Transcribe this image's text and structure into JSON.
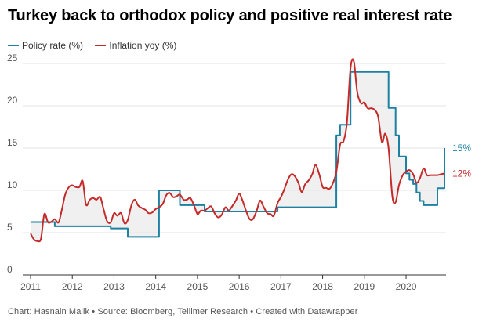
{
  "chart_data": {
    "type": "line",
    "title": "Turkey back to orthodox policy and positive real interest rate",
    "xlabel": "",
    "ylabel": "",
    "xlim": [
      2011,
      2020.92
    ],
    "ylim": [
      0,
      25
    ],
    "x_ticks": [
      "2011",
      "2012",
      "2013",
      "2014",
      "2015",
      "2016",
      "2017",
      "2018",
      "2019",
      "2020"
    ],
    "y_ticks": [
      "0",
      "5",
      "10",
      "15",
      "20",
      "25"
    ],
    "grid": true,
    "legend_position": "top-left",
    "shaded_between_series": true,
    "series": [
      {
        "name": "Policy rate (%)",
        "color": "#1d81a2",
        "end_label": "15%",
        "interpolation": "step",
        "x": [
          2011.0,
          2011.33,
          2011.58,
          2012.67,
          2012.92,
          2013.33,
          2013.92,
          2014.08,
          2014.33,
          2014.58,
          2015.0,
          2015.17,
          2016.17,
          2016.25,
          2016.75,
          2016.92,
          2018.25,
          2018.33,
          2018.42,
          2018.67,
          2019.5,
          2019.58,
          2019.67,
          2019.75,
          2019.83,
          2019.92,
          2020.0,
          2020.08,
          2020.17,
          2020.25,
          2020.33,
          2020.42,
          2020.67,
          2020.75,
          2020.83,
          2020.92
        ],
        "y": [
          6.25,
          6.25,
          5.75,
          5.75,
          5.5,
          4.5,
          4.5,
          10.0,
          10.0,
          8.25,
          8.25,
          7.5,
          7.5,
          7.5,
          7.5,
          8.0,
          8.0,
          16.5,
          17.75,
          24.0,
          24.0,
          19.75,
          19.75,
          16.5,
          14.0,
          14.0,
          12.0,
          11.25,
          10.75,
          9.75,
          8.75,
          8.25,
          8.25,
          10.25,
          10.25,
          15.0
        ]
      },
      {
        "name": "Inflation yoy (%)",
        "color": "#c42a2a",
        "end_label": "12%",
        "interpolation": "smooth",
        "x": [
          2011.0,
          2011.08,
          2011.17,
          2011.25,
          2011.33,
          2011.42,
          2011.5,
          2011.58,
          2011.67,
          2011.75,
          2011.83,
          2011.92,
          2012.0,
          2012.08,
          2012.17,
          2012.25,
          2012.33,
          2012.42,
          2012.5,
          2012.58,
          2012.67,
          2012.75,
          2012.83,
          2012.92,
          2013.0,
          2013.08,
          2013.17,
          2013.25,
          2013.33,
          2013.42,
          2013.5,
          2013.58,
          2013.67,
          2013.75,
          2013.83,
          2013.92,
          2014.0,
          2014.08,
          2014.17,
          2014.25,
          2014.33,
          2014.42,
          2014.5,
          2014.58,
          2014.67,
          2014.75,
          2014.83,
          2014.92,
          2015.0,
          2015.08,
          2015.17,
          2015.25,
          2015.33,
          2015.42,
          2015.5,
          2015.58,
          2015.67,
          2015.75,
          2015.83,
          2015.92,
          2016.0,
          2016.08,
          2016.17,
          2016.25,
          2016.33,
          2016.42,
          2016.5,
          2016.58,
          2016.67,
          2016.75,
          2016.83,
          2016.92,
          2017.0,
          2017.08,
          2017.17,
          2017.25,
          2017.33,
          2017.42,
          2017.5,
          2017.58,
          2017.67,
          2017.75,
          2017.83,
          2017.92,
          2018.0,
          2018.08,
          2018.17,
          2018.25,
          2018.33,
          2018.42,
          2018.5,
          2018.58,
          2018.67,
          2018.75,
          2018.83,
          2018.92,
          2019.0,
          2019.08,
          2019.17,
          2019.25,
          2019.33,
          2019.42,
          2019.5,
          2019.58,
          2019.67,
          2019.75,
          2019.83,
          2019.92,
          2020.0,
          2020.08,
          2020.17,
          2020.25,
          2020.33,
          2020.42,
          2020.5,
          2020.58,
          2020.67,
          2020.75,
          2020.83,
          2020.92
        ],
        "y": [
          4.9,
          4.2,
          4.0,
          4.3,
          7.2,
          6.2,
          6.3,
          6.6,
          6.2,
          7.7,
          9.5,
          10.4,
          10.6,
          10.4,
          10.4,
          11.1,
          8.3,
          8.9,
          9.1,
          8.9,
          9.2,
          7.8,
          6.4,
          6.2,
          7.3,
          7.0,
          7.3,
          6.1,
          6.5,
          8.3,
          8.9,
          8.2,
          7.9,
          7.7,
          7.3,
          7.4,
          7.8,
          8.0,
          8.4,
          9.4,
          9.7,
          9.2,
          9.3,
          9.5,
          8.9,
          8.9,
          9.1,
          8.2,
          7.2,
          7.6,
          7.6,
          7.9,
          8.1,
          7.2,
          6.8,
          7.1,
          8.0,
          7.6,
          8.1,
          8.8,
          9.6,
          8.8,
          7.5,
          6.6,
          6.6,
          7.6,
          8.8,
          8.1,
          7.3,
          7.2,
          7.0,
          8.5,
          9.2,
          10.1,
          11.3,
          11.9,
          11.7,
          10.9,
          9.8,
          10.7,
          11.2,
          11.9,
          13.0,
          11.9,
          10.4,
          10.3,
          10.2,
          10.9,
          12.2,
          15.4,
          15.8,
          17.9,
          24.5,
          25.2,
          21.6,
          20.3,
          20.4,
          19.7,
          19.7,
          19.5,
          18.7,
          15.7,
          16.7,
          15.0,
          9.3,
          8.6,
          10.6,
          11.8,
          12.2,
          12.4,
          11.9,
          10.9,
          11.4,
          12.6,
          11.8,
          11.8,
          11.8,
          11.8,
          11.9,
          12.0
        ]
      }
    ]
  },
  "footer": "Chart: Hasnain Malik • Source: Bloomberg, Tellimer Research • Created with Datawrapper"
}
